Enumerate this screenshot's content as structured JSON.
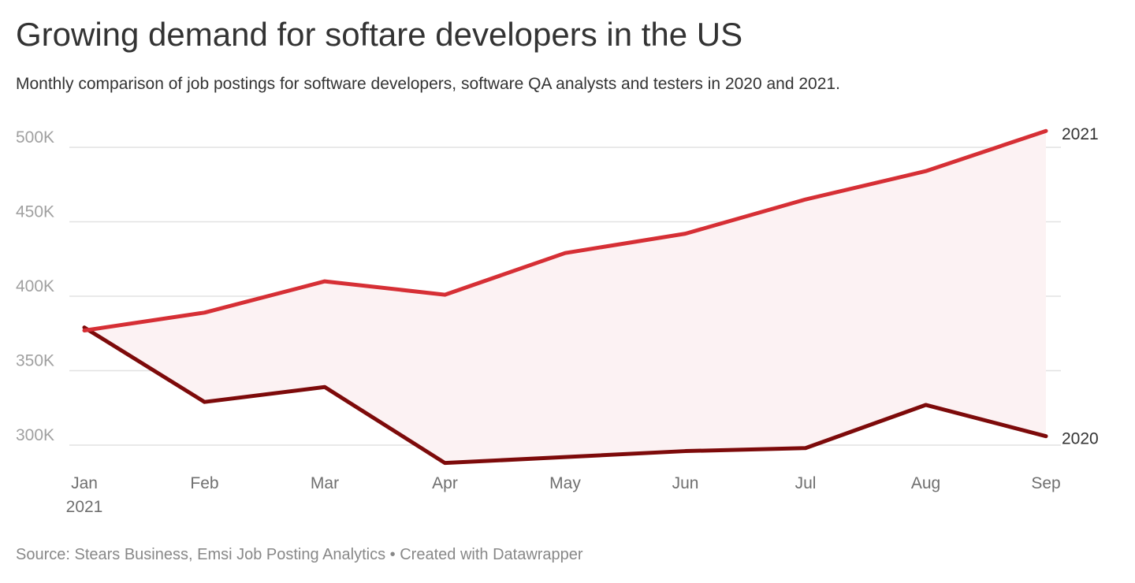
{
  "title": "Growing demand for softare developers in the US",
  "subtitle": "Monthly comparison of job postings for software developers, software QA analysts and testers in 2020 and 2021.",
  "footer": {
    "source": "Source: Stears Business, Emsi Job Posting Analytics",
    "separator": " • ",
    "credit": "Created with Datawrapper"
  },
  "colors": {
    "series_2021": "#d62f35",
    "series_2020": "#7d0a0a",
    "fill_between": "#fcf2f3",
    "grid": "#e2e2e2"
  },
  "chart_data": {
    "type": "line",
    "title": "Growing demand for softare developers in the US",
    "categories": [
      "Jan",
      "Feb",
      "Mar",
      "Apr",
      "May",
      "Jun",
      "Jul",
      "Aug",
      "Sep"
    ],
    "first_category_sublabel": "2021",
    "series": [
      {
        "name": "2021",
        "values": [
          377000,
          389000,
          410000,
          401000,
          429000,
          442000,
          465000,
          484000,
          511000
        ]
      },
      {
        "name": "2020",
        "values": [
          379000,
          329000,
          339000,
          288000,
          292000,
          296000,
          298000,
          327000,
          306000
        ]
      }
    ],
    "yticks": [
      300000,
      350000,
      400000,
      450000,
      500000
    ],
    "ytick_labels": [
      "300K",
      "350K",
      "400K",
      "450K",
      "500K"
    ],
    "ylim": [
      288000,
      520000
    ],
    "xlabel": "",
    "ylabel": "",
    "grid": true,
    "fill_between_series": true
  }
}
